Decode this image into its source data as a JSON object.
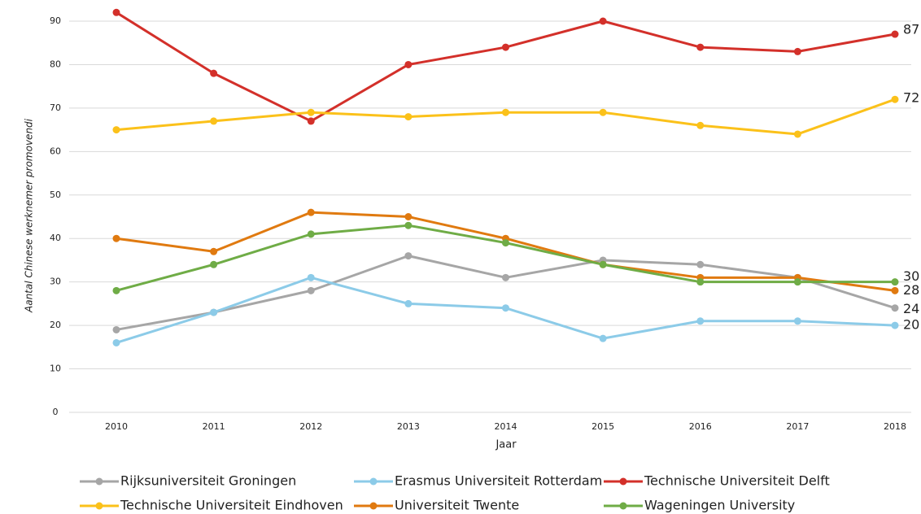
{
  "chart_data": {
    "type": "line",
    "y_label": "Aantal Chinese werknemer promovendi",
    "x_label": "Jaar",
    "categories": [
      "2010",
      "2011",
      "2012",
      "2013",
      "2014",
      "2015",
      "2016",
      "2017",
      "2018"
    ],
    "series": [
      {
        "name": "Rijksuniversiteit Groningen",
        "color": "#a6a6a6",
        "values": [
          19,
          23,
          28,
          36,
          31,
          35,
          34,
          31,
          24
        ]
      },
      {
        "name": "Erasmus Universiteit Rotterdam",
        "color": "#8ccbe8",
        "values": [
          16,
          23,
          31,
          25,
          24,
          17,
          21,
          21,
          20
        ]
      },
      {
        "name": "Technische Universiteit Delft",
        "color": "#d3302a",
        "values": [
          92,
          78,
          67,
          80,
          84,
          90,
          84,
          83,
          87
        ]
      },
      {
        "name": "Technische Universiteit Eindhoven",
        "color": "#fbc11a",
        "values": [
          65,
          67,
          69,
          68,
          69,
          69,
          66,
          64,
          72
        ]
      },
      {
        "name": "Universiteit Twente",
        "color": "#e07a10",
        "values": [
          40,
          37,
          46,
          45,
          40,
          34,
          31,
          31,
          28
        ]
      },
      {
        "name": "Wageningen University",
        "color": "#6fac46",
        "values": [
          28,
          34,
          41,
          43,
          39,
          34,
          30,
          30,
          30
        ]
      }
    ],
    "ylim": [
      0,
      90
    ],
    "yticks": [
      0,
      10,
      20,
      30,
      40,
      50,
      60,
      70,
      80,
      90
    ],
    "grid": true
  }
}
